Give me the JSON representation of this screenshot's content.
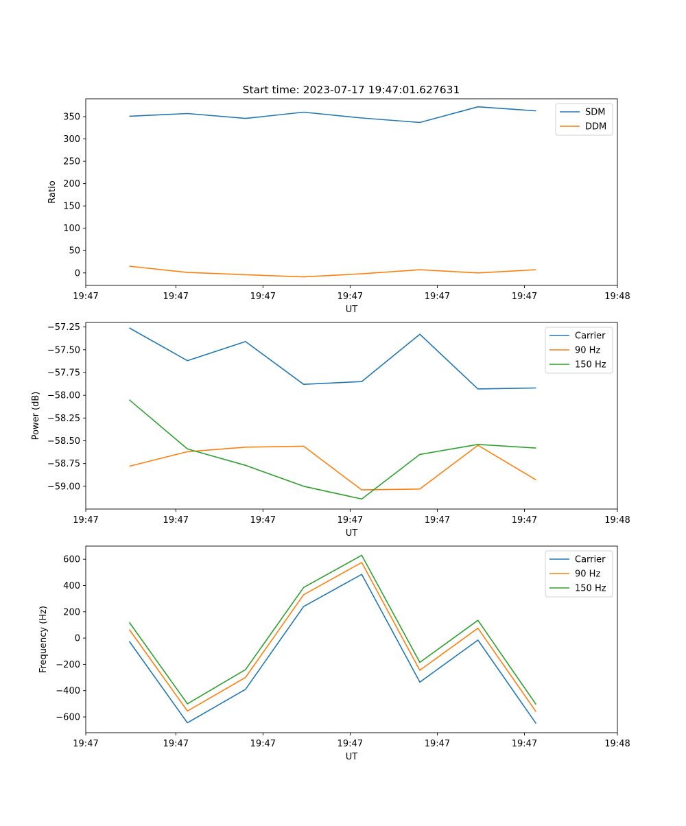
{
  "chart_data": [
    {
      "type": "line",
      "title": "Start time: 2023-07-17 19:47:01.627631",
      "xlabel": "UT",
      "ylabel": "Ratio",
      "x": [
        0,
        1,
        2,
        3,
        4,
        5,
        6,
        7
      ],
      "xlim": [
        -0.75,
        8.4
      ],
      "x_ticks": [
        -0.75,
        0.8,
        2.3,
        3.8,
        5.3,
        6.8,
        8.4
      ],
      "x_tick_labels": [
        "19:47",
        "19:47",
        "19:47",
        "19:47",
        "19:47",
        "19:47",
        "19:48"
      ],
      "ylim": [
        -28,
        390
      ],
      "y_ticks": [
        0,
        50,
        100,
        150,
        200,
        250,
        300,
        350
      ],
      "series": [
        {
          "name": "SDM",
          "color": "#1f77b4",
          "values": [
            351,
            357,
            346,
            360,
            347,
            337,
            372,
            363
          ]
        },
        {
          "name": "DDM",
          "color": "#ff7f0e",
          "values": [
            15,
            1,
            -4,
            -9,
            -2,
            7,
            0,
            7
          ]
        }
      ],
      "legend": "top-right"
    },
    {
      "type": "line",
      "title": "",
      "xlabel": "UT",
      "ylabel": "Power (dB)",
      "x": [
        0,
        1,
        2,
        3,
        4,
        5,
        6,
        7
      ],
      "xlim": [
        -0.75,
        8.4
      ],
      "x_ticks": [
        -0.75,
        0.8,
        2.3,
        3.8,
        5.3,
        6.8,
        8.4
      ],
      "x_tick_labels": [
        "19:47",
        "19:47",
        "19:47",
        "19:47",
        "19:47",
        "19:47",
        "19:48"
      ],
      "ylim": [
        -59.25,
        -57.2
      ],
      "y_ticks": [
        -59.0,
        -58.75,
        -58.5,
        -58.25,
        -58.0,
        -57.75,
        -57.5,
        -57.25
      ],
      "y_tick_labels": [
        "−59.00",
        "−58.75",
        "−58.50",
        "−58.25",
        "−58.00",
        "−57.75",
        "−57.50",
        "−57.25"
      ],
      "series": [
        {
          "name": "Carrier",
          "color": "#1f77b4",
          "values": [
            -57.26,
            -57.62,
            -57.41,
            -57.88,
            -57.85,
            -57.33,
            -57.93,
            -57.92
          ]
        },
        {
          "name": "90 Hz",
          "color": "#ff7f0e",
          "values": [
            -58.78,
            -58.62,
            -58.57,
            -58.56,
            -59.04,
            -59.03,
            -58.55,
            -58.93
          ]
        },
        {
          "name": "150 Hz",
          "color": "#2ca02c",
          "values": [
            -58.05,
            -58.59,
            -58.77,
            -59.0,
            -59.14,
            -58.65,
            -58.54,
            -58.58
          ]
        }
      ],
      "legend": "top-right"
    },
    {
      "type": "line",
      "title": "",
      "xlabel": "UT",
      "ylabel": "Frequency (Hz)",
      "x": [
        0,
        1,
        2,
        3,
        4,
        5,
        6,
        7
      ],
      "xlim": [
        -0.75,
        8.4
      ],
      "x_ticks": [
        -0.75,
        0.8,
        2.3,
        3.8,
        5.3,
        6.8,
        8.4
      ],
      "x_tick_labels": [
        "19:47",
        "19:47",
        "19:47",
        "19:47",
        "19:47",
        "19:47",
        "19:48"
      ],
      "ylim": [
        -720,
        700
      ],
      "y_ticks": [
        -600,
        -400,
        -200,
        0,
        200,
        400,
        600
      ],
      "y_tick_labels": [
        "−600",
        "−400",
        "−200",
        "0",
        "200",
        "400",
        "600"
      ],
      "series": [
        {
          "name": "Carrier",
          "color": "#1f77b4",
          "values": [
            -25,
            -645,
            -390,
            240,
            485,
            -335,
            -15,
            -650
          ]
        },
        {
          "name": "90 Hz",
          "color": "#ff7f0e",
          "values": [
            65,
            -555,
            -300,
            330,
            575,
            -245,
            75,
            -560
          ]
        },
        {
          "name": "150 Hz",
          "color": "#2ca02c",
          "values": [
            120,
            -500,
            -240,
            385,
            630,
            -185,
            135,
            -505
          ]
        }
      ],
      "legend": "top-right"
    }
  ]
}
